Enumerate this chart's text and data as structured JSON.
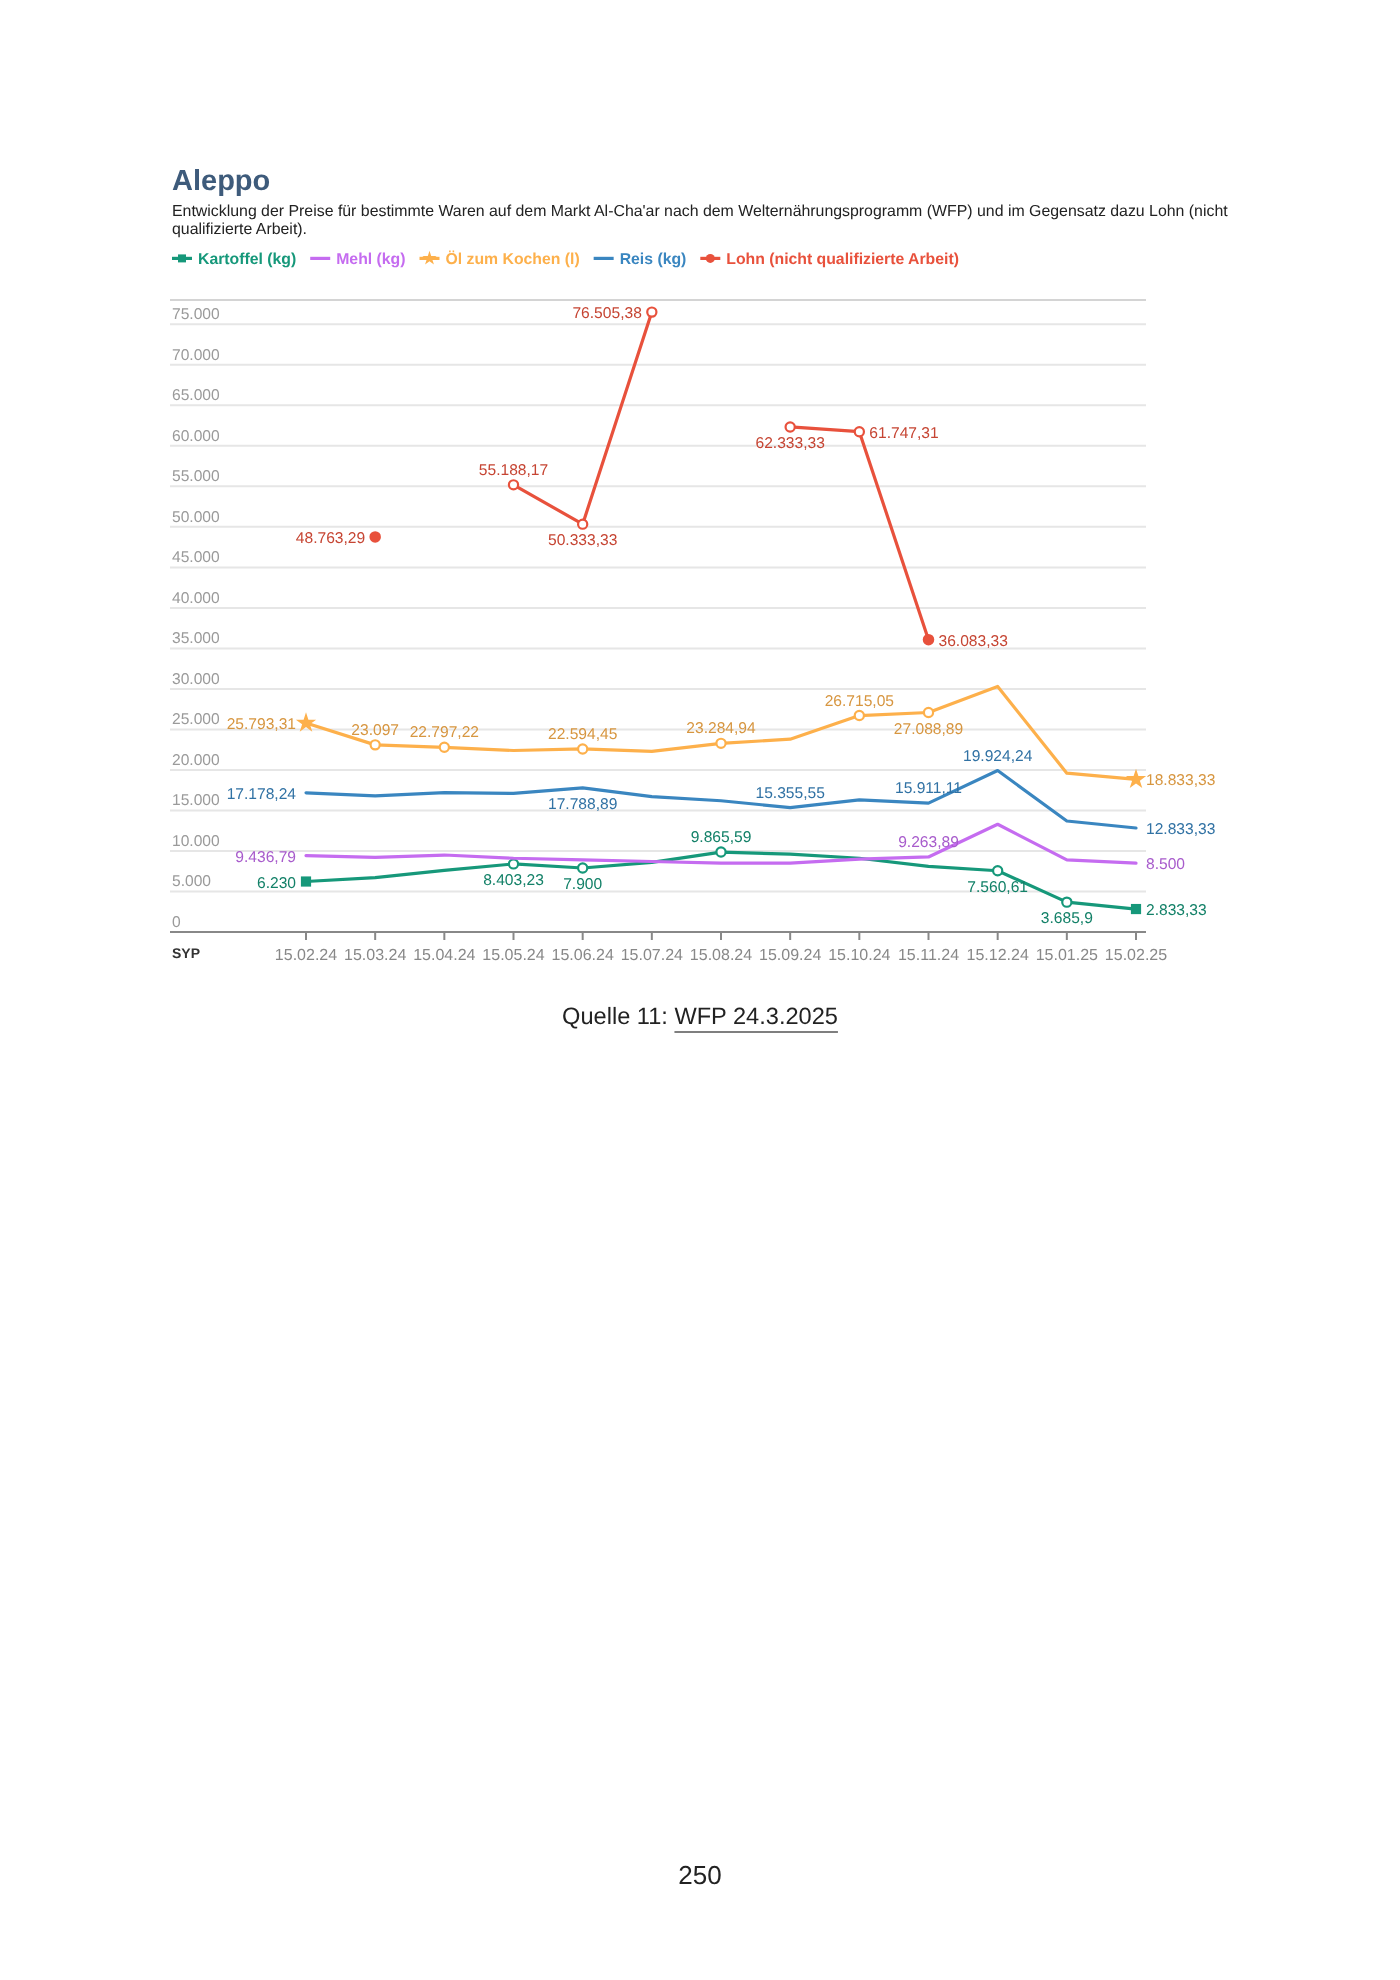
{
  "chart_data": {
    "type": "line",
    "title": "Aleppo",
    "subtitle": "Entwicklung der Preise für bestimmte Waren auf dem Markt Al-Cha'ar nach dem Welternährungsprogramm (WFP) und im Gegensatz dazu Lohn (nicht qualifizierte Arbeit).",
    "ylabel": "SYP",
    "categories": [
      "15.02.24",
      "15.03.24",
      "15.04.24",
      "15.05.24",
      "15.06.24",
      "15.07.24",
      "15.08.24",
      "15.09.24",
      "15.10.24",
      "15.11.24",
      "15.12.24",
      "15.01.25",
      "15.02.25"
    ],
    "series": [
      {
        "name": "Kartoffel (kg)",
        "color": "#16987a",
        "marker": "square",
        "values": [
          6230,
          6700,
          7600,
          8403.23,
          7900,
          8600,
          9865.59,
          9600,
          9100,
          8100,
          7560.61,
          3685.9,
          2833.33
        ],
        "value_labels": [
          "6.230",
          null,
          null,
          "8.403,23",
          "7.900",
          null,
          "9.865,59",
          null,
          null,
          null,
          "7.560,61",
          "3.685,9",
          "2.833,33"
        ]
      },
      {
        "name": "Mehl (kg)",
        "color": "#c56cf0",
        "marker": "none",
        "values": [
          9436.79,
          9200,
          9500,
          9100,
          8900,
          8700,
          8500,
          8500,
          9000,
          9263.89,
          13300,
          8900,
          8500
        ],
        "value_labels": [
          "9.436,79",
          null,
          null,
          null,
          null,
          null,
          null,
          null,
          null,
          "9.263,89",
          null,
          null,
          "8.500"
        ]
      },
      {
        "name": "Öl zum Kochen (l)",
        "color": "#fdb04b",
        "marker": "star",
        "values": [
          25793.31,
          23097,
          22797.22,
          22400,
          22594.45,
          22300,
          23284.94,
          23800,
          26715.05,
          27088.89,
          30300,
          19600,
          18833.33
        ],
        "value_labels": [
          "25.793,31",
          "23.097",
          "22.797,22",
          null,
          "22.594,45",
          null,
          "23.284,94",
          null,
          "26.715,05",
          "27.088,89",
          null,
          null,
          "18.833,33"
        ]
      },
      {
        "name": "Reis (kg)",
        "color": "#3a86c0",
        "marker": "none",
        "values": [
          17178.24,
          16800,
          17200,
          17100,
          17788.89,
          16700,
          16200,
          15355.55,
          16300,
          15911.11,
          19924.24,
          13700,
          12833.33
        ],
        "value_labels": [
          "17.178,24",
          null,
          null,
          null,
          "17.788,89",
          null,
          null,
          "15.355,55",
          null,
          "15.911,11",
          "19.924,24",
          null,
          "12.833,33"
        ]
      },
      {
        "name": "Lohn (nicht qualifizierte Arbeit)",
        "color": "#e8513c",
        "marker": "circle",
        "values": [
          null,
          48763.29,
          null,
          55188.17,
          50333.33,
          76505.38,
          null,
          62333.33,
          61747.31,
          36083.33,
          null,
          null,
          null
        ],
        "value_labels": [
          null,
          "48.763,29",
          null,
          "55.188,17",
          "50.333,33",
          "76.505,38",
          null,
          "62.333,33",
          "61.747,31",
          "36.083,33",
          null,
          null,
          null
        ]
      }
    ],
    "ylim": [
      0,
      78000
    ],
    "yticks": [
      0,
      {
        "value": 5000,
        "label": "5.000"
      },
      {
        "value": 10000,
        "label": "10.000"
      },
      {
        "value": 15000,
        "label": "15.000"
      },
      {
        "value": 20000,
        "label": "20.000"
      },
      {
        "value": 25000,
        "label": "25.000"
      },
      {
        "value": 30000,
        "label": "30.000"
      },
      {
        "value": 35000,
        "label": "35.000"
      },
      {
        "value": 40000,
        "label": "40.000"
      },
      {
        "value": 45000,
        "label": "45.000"
      },
      {
        "value": 50000,
        "label": "50.000"
      },
      {
        "value": 55000,
        "label": "55.000"
      },
      {
        "value": 60000,
        "label": "60.000"
      },
      {
        "value": 65000,
        "label": "65.000"
      },
      {
        "value": 70000,
        "label": "70.000"
      },
      {
        "value": 75000,
        "label": "75.000"
      }
    ],
    "grid": "y",
    "legend": "top left",
    "line_style": "solid",
    "annotations": [
      "Quelle 11: WFP 24.3.2025",
      "250"
    ]
  }
}
